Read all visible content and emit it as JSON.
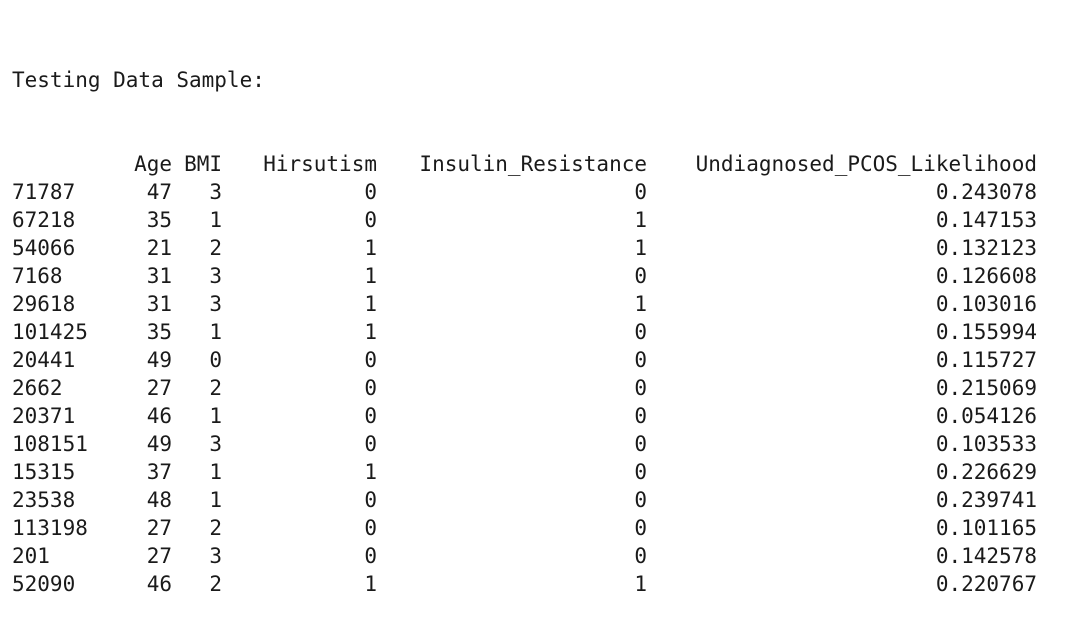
{
  "title": "Testing Data Sample:",
  "columns": [
    "",
    "Age",
    "BMI",
    "Hirsutism",
    "Insulin_Resistance",
    "Undiagnosed_PCOS_Likelihood"
  ],
  "rows": [
    [
      "71787",
      "47",
      "3",
      "0",
      "0",
      "0.243078"
    ],
    [
      "67218",
      "35",
      "1",
      "0",
      "1",
      "0.147153"
    ],
    [
      "54066",
      "21",
      "2",
      "1",
      "1",
      "0.132123"
    ],
    [
      "7168",
      "31",
      "3",
      "1",
      "0",
      "0.126608"
    ],
    [
      "29618",
      "31",
      "3",
      "1",
      "1",
      "0.103016"
    ],
    [
      "101425",
      "35",
      "1",
      "1",
      "0",
      "0.155994"
    ],
    [
      "20441",
      "49",
      "0",
      "0",
      "0",
      "0.115727"
    ],
    [
      "2662",
      "27",
      "2",
      "0",
      "0",
      "0.215069"
    ],
    [
      "20371",
      "46",
      "1",
      "0",
      "0",
      "0.054126"
    ],
    [
      "108151",
      "49",
      "3",
      "0",
      "0",
      "0.103533"
    ],
    [
      "15315",
      "37",
      "1",
      "1",
      "0",
      "0.226629"
    ],
    [
      "23538",
      "48",
      "1",
      "0",
      "0",
      "0.239741"
    ],
    [
      "113198",
      "27",
      "2",
      "0",
      "0",
      "0.101165"
    ],
    [
      "201",
      "27",
      "3",
      "0",
      "0",
      "0.142578"
    ],
    [
      "52090",
      "46",
      "2",
      "1",
      "1",
      "0.220767"
    ]
  ]
}
